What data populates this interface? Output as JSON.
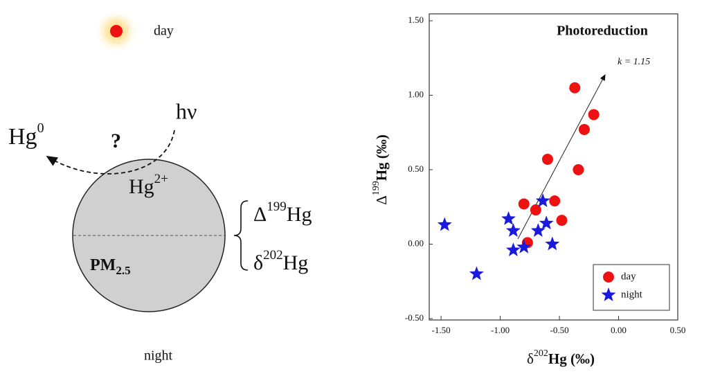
{
  "diagram": {
    "sun_label": "day",
    "moon_label": "night",
    "hg0": {
      "base": "Hg",
      "sup": "0"
    },
    "question": "?",
    "hv": "hν",
    "hg2": {
      "base": "Hg",
      "sup": "2+"
    },
    "delta199": {
      "base": "Δ",
      "sup": "199",
      "rest": "Hg"
    },
    "delta202": {
      "base": "δ",
      "sup": "202",
      "rest": "Hg"
    },
    "pm": {
      "base": "PM",
      "sub": "2.5"
    }
  },
  "chart_data": {
    "type": "scatter",
    "title": "Photoreduction",
    "annotation": "k = 1.15",
    "x_label": {
      "base": "δ",
      "sup": "202",
      "rest": "Hg (‰)"
    },
    "y_label": {
      "base": "Δ",
      "sup": "199",
      "rest": "Hg (‰)"
    },
    "xlim": [
      -1.6,
      0.5
    ],
    "ylim": [
      -0.5,
      1.5
    ],
    "xticks": [
      {
        "value": -1.5,
        "label": "-1.50"
      },
      {
        "value": -1,
        "label": "-1.00"
      },
      {
        "value": -0.5,
        "label": "-0.50"
      },
      {
        "value": 0,
        "label": "0.00"
      },
      {
        "value": 0.5,
        "label": "0.50"
      }
    ],
    "yticks": [
      {
        "value": -0.5,
        "label": "-0.50"
      },
      {
        "value": 0,
        "label": "0.00"
      },
      {
        "value": 0.5,
        "label": "0.50"
      },
      {
        "value": 1,
        "label": "1.00"
      },
      {
        "value": 1.5,
        "label": "1.50"
      }
    ],
    "legend": "lower right",
    "series": [
      {
        "name": "day",
        "color": "#ee1111",
        "marker": "circle",
        "x": [
          -0.37,
          -0.21,
          -0.29,
          -0.6,
          -0.34,
          -0.8,
          -0.7,
          -0.54,
          -0.48,
          -0.77
        ],
        "values": [
          1.05,
          0.87,
          0.77,
          0.57,
          0.5,
          0.27,
          0.23,
          0.29,
          0.16,
          0.01
        ]
      },
      {
        "name": "night",
        "color": "#1a1adc",
        "marker": "star",
        "x": [
          -1.47,
          -1.2,
          -0.93,
          -0.89,
          -0.89,
          -0.8,
          -0.68,
          -0.64,
          -0.61,
          -0.56
        ],
        "values": [
          0.13,
          -0.2,
          0.17,
          0.09,
          -0.04,
          -0.02,
          0.09,
          0.29,
          0.14,
          0.0
        ]
      }
    ]
  }
}
